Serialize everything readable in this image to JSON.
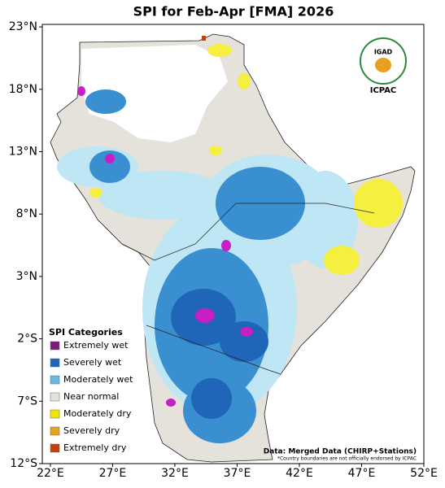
{
  "title": "SPI for Feb-Apr [FMA] 2026",
  "logo": {
    "acronym": "IGAD",
    "name": "ICPAC"
  },
  "map": {
    "xlim": [
      21.35,
      52
    ],
    "ylim": [
      -12,
      23.2
    ],
    "xticks": [
      {
        "value": 22,
        "label": "22°E"
      },
      {
        "value": 27,
        "label": "27°E"
      },
      {
        "value": 32,
        "label": "32°E"
      },
      {
        "value": 37,
        "label": "37°E"
      },
      {
        "value": 42,
        "label": "42°E"
      },
      {
        "value": 47,
        "label": "47°E"
      },
      {
        "value": 52,
        "label": "52°E"
      }
    ],
    "yticks": [
      {
        "value": 23,
        "label": "23°N"
      },
      {
        "value": 18,
        "label": "18°N"
      },
      {
        "value": 13,
        "label": "13°N"
      },
      {
        "value": 8,
        "label": "8°N"
      },
      {
        "value": 3,
        "label": "3°N"
      },
      {
        "value": -2,
        "label": "2°S"
      },
      {
        "value": -7,
        "label": "7°S"
      },
      {
        "value": -12,
        "label": "12°S"
      }
    ]
  },
  "legend": {
    "title": "SPI Categories",
    "items": [
      {
        "name": "Extremely wet",
        "color": "#7a1b7a"
      },
      {
        "name": "Severely wet",
        "color": "#1f66b8"
      },
      {
        "name": "Moderately wet",
        "color": "#6cb6e0"
      },
      {
        "name": "Near normal",
        "color": "#e4e2da"
      },
      {
        "name": "Moderately dry",
        "color": "#f2e600"
      },
      {
        "name": "Severely dry",
        "color": "#e8a020"
      },
      {
        "name": "Extremely dry",
        "color": "#c0400f"
      }
    ]
  },
  "source": "Data: Merged Data (CHIRP+Stations)",
  "disclaimer": "*Country boundaries are not officially endorsed by ICPAC"
}
